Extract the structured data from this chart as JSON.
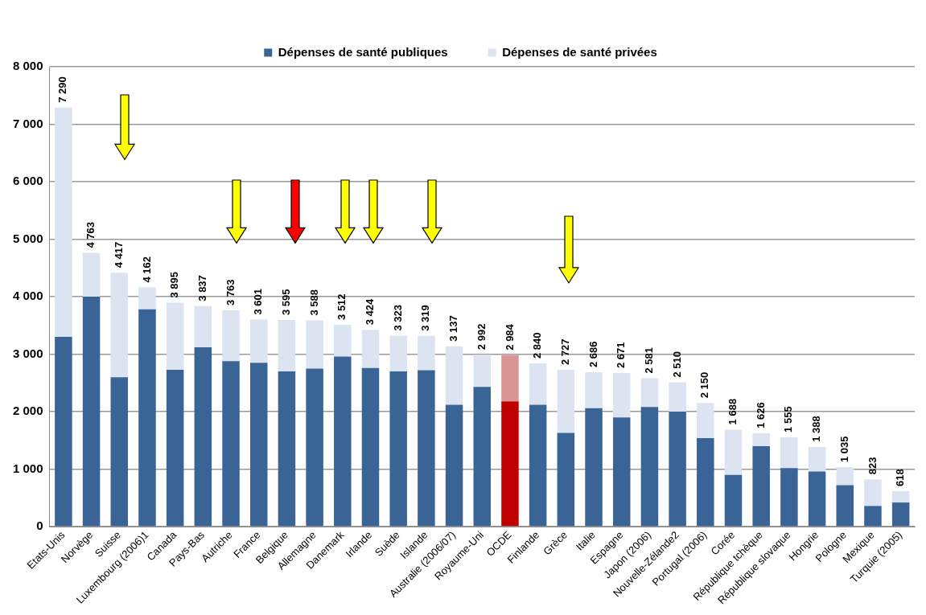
{
  "chart_data": {
    "type": "bar",
    "stacked": true,
    "categories": [
      "Etats-Unis",
      "Norvège",
      "Suisse",
      "Luxembourg (2006)1",
      "Canada",
      "Pays-Bas",
      "Autriche",
      "France",
      "Belgique",
      "Allemagne",
      "Danemark",
      "Irlande",
      "Suède",
      "Islande",
      "Australie (2006/07)",
      "Royaume-Uni",
      "OCDE",
      "Finlande",
      "Grèce",
      "Italie",
      "Espagne",
      "Japon (2006)",
      "Nouvelle-Zélande2",
      "Portugal (2006)",
      "Corée",
      "République tchèque",
      "République slovaque",
      "Hongrie",
      "Pologne",
      "Mexique",
      "Turquie (2005)"
    ],
    "series": [
      {
        "name": "Dépenses de santé publiques",
        "color": "#3a6496",
        "colors": [
          "#3a6496",
          "#3a6496",
          "#3a6496",
          "#3a6496",
          "#3a6496",
          "#3a6496",
          "#3a6496",
          "#3a6496",
          "#3a6496",
          "#3a6496",
          "#3a6496",
          "#3a6496",
          "#3a6496",
          "#3a6496",
          "#3a6496",
          "#3a6496",
          "#c00000",
          "#3a6496",
          "#3a6496",
          "#3a6496",
          "#3a6496",
          "#3a6496",
          "#3a6496",
          "#3a6496",
          "#3a6496",
          "#3a6496",
          "#3a6496",
          "#3a6496",
          "#3a6496",
          "#3a6496",
          "#3a6496"
        ],
        "values": [
          3300,
          4000,
          2600,
          3780,
          2730,
          3120,
          2880,
          2850,
          2700,
          2750,
          2960,
          2760,
          2700,
          2720,
          2120,
          2430,
          2180,
          2120,
          1630,
          2060,
          1900,
          2080,
          2000,
          1540,
          900,
          1400,
          1020,
          960,
          720,
          360,
          420
        ]
      },
      {
        "name": "Dépenses de santé privées",
        "color": "#dbe4f0",
        "colors": [
          "#dbe4f0",
          "#dbe4f0",
          "#dbe4f0",
          "#dbe4f0",
          "#dbe4f0",
          "#dbe4f0",
          "#dbe4f0",
          "#dbe4f0",
          "#dbe4f0",
          "#dbe4f0",
          "#dbe4f0",
          "#dbe4f0",
          "#dbe4f0",
          "#dbe4f0",
          "#dbe4f0",
          "#dbe4f0",
          "#d99594",
          "#dbe4f0",
          "#dbe4f0",
          "#dbe4f0",
          "#dbe4f0",
          "#dbe4f0",
          "#dbe4f0",
          "#dbe4f0",
          "#dbe4f0",
          "#dbe4f0",
          "#dbe4f0",
          "#dbe4f0",
          "#dbe4f0",
          "#dbe4f0",
          "#dbe4f0"
        ],
        "values": [
          3990,
          763,
          1817,
          382,
          1165,
          717,
          883,
          751,
          895,
          838,
          552,
          664,
          623,
          599,
          1017,
          562,
          804,
          720,
          1097,
          626,
          771,
          501,
          510,
          610,
          788,
          226,
          535,
          428,
          315,
          463,
          198
        ]
      }
    ],
    "totals": [
      "7 290",
      "4 763",
      "4 417",
      "4 162",
      "3 895",
      "3 837",
      "3 763",
      "3 601",
      "3 595",
      "3 588",
      "3 512",
      "3 424",
      "3 323",
      "3 319",
      "3 137",
      "2 992",
      "2 984",
      "2 840",
      "2 727",
      "2 686",
      "2 671",
      "2 581",
      "2 510",
      "2 150",
      "1 688",
      "1 626",
      "1 555",
      "1 388",
      "1 035",
      "823",
      "618"
    ],
    "ylim": [
      0,
      8000
    ],
    "yticks": [
      {
        "value": 0,
        "label": "0"
      },
      {
        "value": 1000,
        "label": "1 000"
      },
      {
        "value": 2000,
        "label": "2 000"
      },
      {
        "value": 3000,
        "label": "3 000"
      },
      {
        "value": 4000,
        "label": "4 000"
      },
      {
        "value": 5000,
        "label": "5 000"
      },
      {
        "value": 6000,
        "label": "6 000"
      },
      {
        "value": 7000,
        "label": "7 000"
      },
      {
        "value": 8000,
        "label": "8 000"
      }
    ],
    "grid": "y",
    "legend": "top"
  }
}
